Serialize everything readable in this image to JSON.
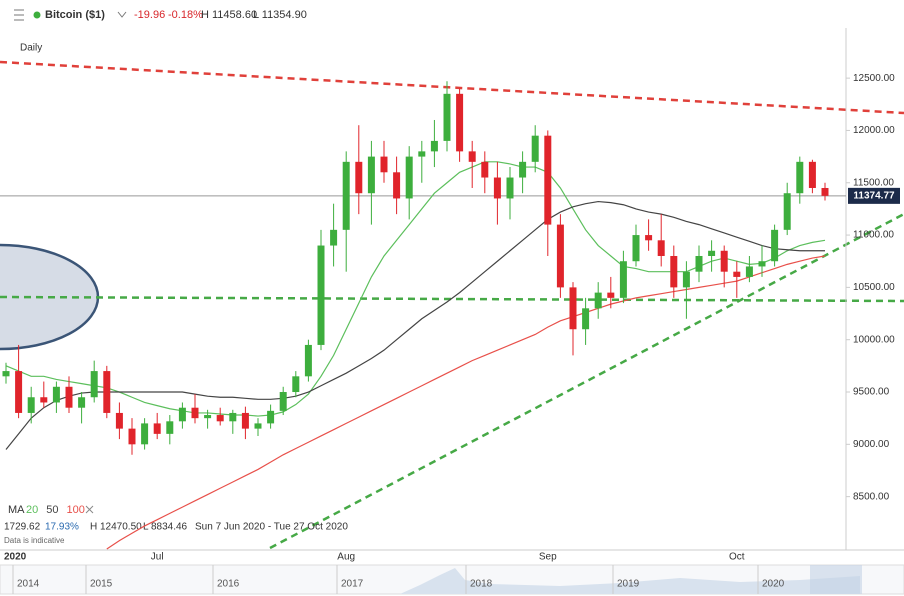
{
  "header": {
    "instrument": "Bitcoin ($1)",
    "change": "-19.96",
    "change_pct": "-0.18%",
    "high": "H 11458.60",
    "low": "L 11354.90"
  },
  "chart_data": {
    "type": "candlestick",
    "interval": "Daily",
    "year_label": "2020",
    "ma_label": "MA",
    "categories": [
      null,
      null,
      null,
      null,
      null,
      null,
      null,
      null,
      null,
      null,
      null,
      null,
      "Jul",
      null,
      null,
      null,
      null,
      null,
      null,
      null,
      null,
      null,
      null,
      null,
      null,
      null,
      null,
      "Aug",
      null,
      null,
      null,
      null,
      null,
      null,
      null,
      null,
      null,
      null,
      null,
      null,
      null,
      null,
      null,
      "Sep",
      null,
      null,
      null,
      null,
      null,
      null,
      null,
      null,
      null,
      null,
      null,
      null,
      null,
      null,
      "Oct",
      null,
      null,
      null,
      null,
      null,
      null,
      null
    ],
    "open": [
      9650,
      9700,
      9300,
      9450,
      9400,
      9550,
      9350,
      9450,
      9700,
      9300,
      9150,
      9000,
      9200,
      9100,
      9220,
      9350,
      9250,
      9280,
      9220,
      9300,
      9150,
      9200,
      9320,
      9500,
      9650,
      9950,
      10900,
      11050,
      11700,
      11400,
      11750,
      11600,
      11350,
      11750,
      11800,
      11900,
      12350,
      11800,
      11700,
      11550,
      11350,
      11550,
      11700,
      11950,
      11100,
      10500,
      10100,
      10300,
      10450,
      10400,
      10750,
      11000,
      10950,
      10800,
      10500,
      10650,
      10800,
      10850,
      10650,
      10600,
      10700,
      10750,
      11050,
      11400,
      11700,
      11450
    ],
    "high": [
      9780,
      9950,
      9550,
      9600,
      9600,
      9650,
      9500,
      9800,
      9750,
      9400,
      9250,
      9250,
      9300,
      9280,
      9400,
      9480,
      9330,
      9350,
      9330,
      9360,
      9250,
      9380,
      9550,
      9700,
      10000,
      11050,
      11300,
      11800,
      12050,
      11900,
      11900,
      11750,
      11850,
      11900,
      12100,
      12470,
      12400,
      11900,
      11800,
      11700,
      11650,
      11800,
      12050,
      12000,
      11200,
      10550,
      10400,
      10550,
      10600,
      10850,
      11100,
      11150,
      11200,
      10900,
      10750,
      10900,
      10950,
      10900,
      10750,
      10800,
      10900,
      11100,
      11500,
      11750,
      11720,
      11500
    ],
    "low": [
      9580,
      9250,
      9200,
      9350,
      9300,
      9300,
      9200,
      9400,
      9250,
      9050,
      8900,
      8950,
      9050,
      9000,
      9150,
      9200,
      9150,
      9180,
      9100,
      9050,
      9080,
      9150,
      9280,
      9450,
      9600,
      9900,
      10700,
      10650,
      11200,
      11100,
      11500,
      11200,
      11150,
      11500,
      11650,
      11800,
      11700,
      11450,
      11400,
      11100,
      11150,
      11400,
      11600,
      10800,
      10400,
      9850,
      9950,
      10200,
      10300,
      10350,
      10700,
      10850,
      10700,
      10400,
      10200,
      10550,
      10650,
      10500,
      10400,
      10550,
      10600,
      10700,
      11000,
      11300,
      11400,
      11330
    ],
    "close": [
      9700,
      9300,
      9450,
      9400,
      9550,
      9350,
      9450,
      9700,
      9300,
      9150,
      9000,
      9200,
      9100,
      9220,
      9350,
      9250,
      9280,
      9220,
      9300,
      9150,
      9200,
      9320,
      9500,
      9650,
      9950,
      10900,
      11050,
      11700,
      11400,
      11750,
      11600,
      11350,
      11750,
      11800,
      11900,
      12350,
      11800,
      11700,
      11550,
      11350,
      11550,
      11700,
      11950,
      11100,
      10500,
      10100,
      10300,
      10450,
      10400,
      10750,
      11000,
      10950,
      10800,
      10500,
      10650,
      10800,
      10850,
      10650,
      10600,
      10700,
      10750,
      11050,
      11400,
      11700,
      11450,
      11375
    ],
    "up_color": "#3dae3d",
    "down_color": "#e0242b",
    "series": [
      {
        "name": "20",
        "color": "#5cbf5c",
        "values": [
          9750,
          9700,
          9650,
          9650,
          9620,
          9600,
          9580,
          9560,
          9540,
          9500,
          9450,
          9400,
          9370,
          9340,
          9320,
          9300,
          9300,
          9290,
          9280,
          9280,
          9270,
          9280,
          9310,
          9380,
          9480,
          9650,
          9850,
          10100,
          10350,
          10600,
          10800,
          10950,
          11100,
          11250,
          11400,
          11500,
          11600,
          11650,
          11700,
          11700,
          11680,
          11650,
          11650,
          11600,
          11450,
          11250,
          11050,
          10900,
          10800,
          10700,
          10680,
          10650,
          10650,
          10650,
          10650,
          10700,
          10750,
          10780,
          10750,
          10720,
          10730,
          10780,
          10850,
          10900,
          10930,
          10950
        ]
      },
      {
        "name": "50",
        "color": "#444444",
        "values": [
          8950,
          9100,
          9250,
          9350,
          9420,
          9460,
          9490,
          9500,
          9500,
          9500,
          9500,
          9500,
          9500,
          9500,
          9500,
          9480,
          9460,
          9450,
          9450,
          9440,
          9430,
          9430,
          9440,
          9460,
          9500,
          9560,
          9620,
          9680,
          9750,
          9820,
          9900,
          10000,
          10100,
          10200,
          10280,
          10360,
          10450,
          10550,
          10650,
          10750,
          10850,
          10950,
          11050,
          11150,
          11220,
          11270,
          11300,
          11320,
          11310,
          11290,
          11250,
          11220,
          11200,
          11170,
          11130,
          11100,
          11060,
          11020,
          10980,
          10940,
          10900,
          10870,
          10860,
          10850,
          10850,
          10850
        ]
      },
      {
        "name": "100",
        "color": "#e8504a",
        "values": [
          null,
          null,
          null,
          null,
          null,
          null,
          null,
          null,
          8000,
          8080,
          8150,
          8220,
          8280,
          8340,
          8400,
          8460,
          8520,
          8580,
          8640,
          8700,
          8760,
          8830,
          8900,
          8960,
          9020,
          9080,
          9140,
          9200,
          9260,
          9320,
          9380,
          9440,
          9500,
          9560,
          9620,
          9680,
          9740,
          9800,
          9850,
          9900,
          9950,
          10000,
          10050,
          10120,
          10180,
          10220,
          10260,
          10300,
          10340,
          10370,
          10400,
          10420,
          10440,
          10460,
          10480,
          10500,
          10520,
          10540,
          10560,
          10600,
          10640,
          10680,
          10720,
          10750,
          10780,
          10800
        ]
      }
    ],
    "last_price": 11374.77,
    "ylim": [
      7990,
      12960
    ],
    "yticks": [
      {
        "value": 8500,
        "label": "8500.00"
      },
      {
        "value": 9000,
        "label": "9000.00"
      },
      {
        "value": 9500,
        "label": "9500.00"
      },
      {
        "value": 10000,
        "label": "10000.00"
      },
      {
        "value": 10500,
        "label": "10500.00"
      },
      {
        "value": 11000,
        "label": "11000.00"
      },
      {
        "value": 11500,
        "label": "11500.00"
      },
      {
        "value": 12000,
        "label": "12000.00"
      },
      {
        "value": 12500,
        "label": "12500.00"
      }
    ],
    "stats": {
      "change": "1729.62",
      "change_pct": "17.93%",
      "high": "H 12470.50",
      "low": "L 8834.46",
      "range": "Sun 7 Jun 2020 - Tue 27 Oct 2020",
      "note": "Data is indicative"
    },
    "navigator_years": [
      "2014",
      "2015",
      "2016",
      "2017",
      "2018",
      "2019",
      "2020"
    ]
  }
}
